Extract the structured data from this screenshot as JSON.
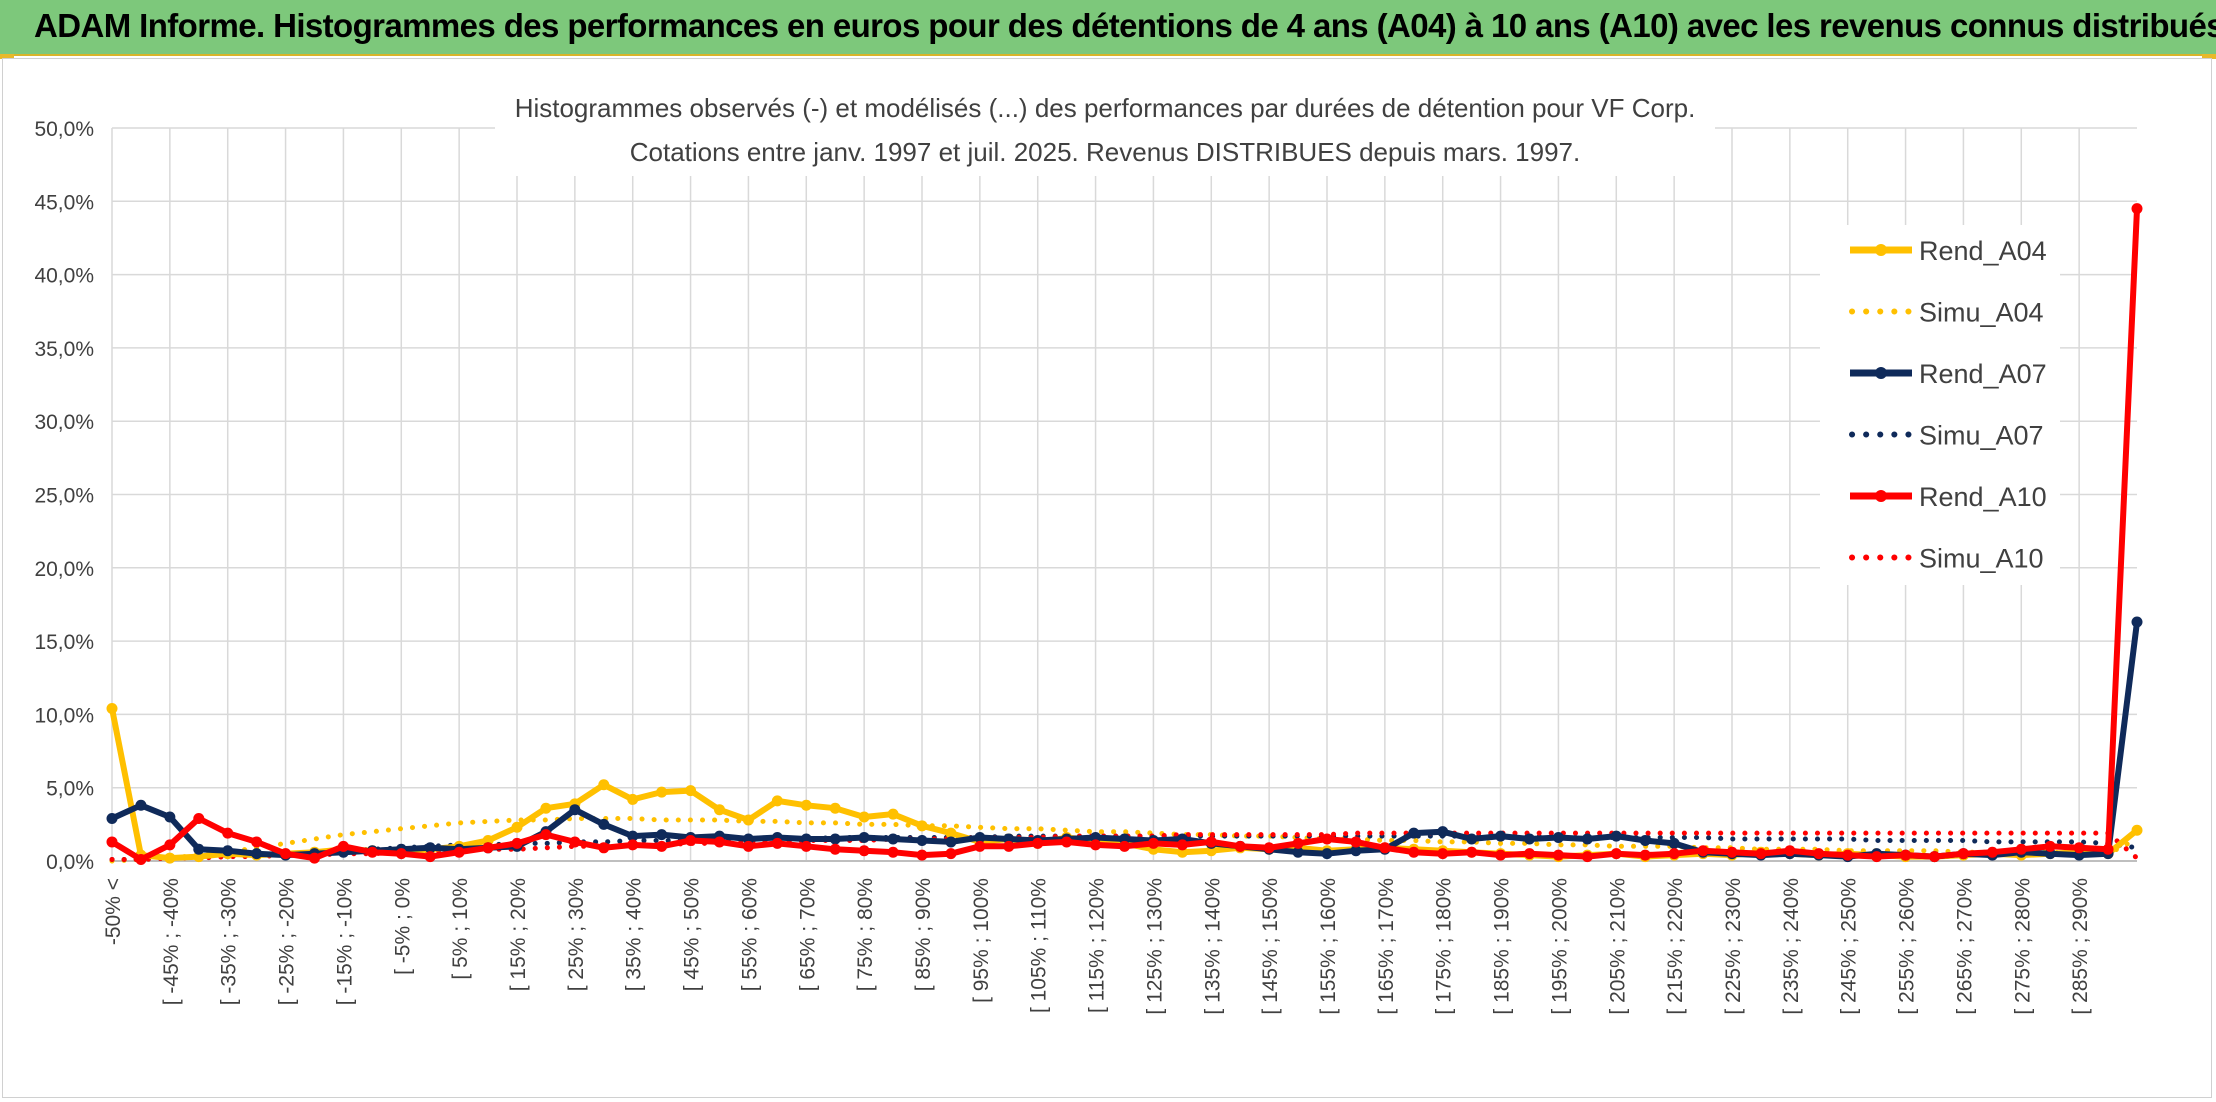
{
  "header": {
    "title": "ADAM Informe. Histogrammes des performances en euros pour des détentions de 4 ans (A04) à 10 ans (A10) avec les revenus connus distribués"
  },
  "chart_data": {
    "type": "line",
    "title_lines": [
      "Histogrammes observés (-) et modélisés (...) des performances par durées de détention pour VF Corp.",
      "Cotations entre janv. 1997 et juil. 2025. Revenus DISTRIBUES depuis mars. 1997."
    ],
    "ylim": [
      0,
      50
    ],
    "yticks": [
      "0,0%",
      "5,0%",
      "10,0%",
      "15,0%",
      "20,0%",
      "25,0%",
      "30,0%",
      "35,0%",
      "40,0%",
      "45,0%",
      "50,0%"
    ],
    "grid": true,
    "legend_position": "right",
    "xtick_labels": [
      "-50% <",
      "[ -45% ; -40%",
      "[ -35% ; -30%",
      "[ -25% ; -20%",
      "[ -15% ; -10%",
      "[ -5% ; 0%",
      "[ 5% ; 10%",
      "[ 15% ; 20%",
      "[ 25% ; 30%",
      "[ 35% ; 40%",
      "[ 45% ; 50%",
      "[ 55% ; 60%",
      "[ 65% ; 70%",
      "[ 75% ; 80%",
      "[ 85% ; 90%",
      "[ 95% ; 100%",
      "[ 105% ; 110%",
      "[ 115% ; 120%",
      "[ 125% ; 130%",
      "[ 135% ; 140%",
      "[ 145% ; 150%",
      "[ 155% ; 160%",
      "[ 165% ; 170%",
      "[ 175% ; 180%",
      "[ 185% ; 190%",
      "[ 195% ; 200%",
      "[ 205% ; 210%",
      "[ 215% ; 220%",
      "[ 225% ; 230%",
      "[ 235% ; 240%",
      "[ 245% ; 250%",
      "[ 255% ; 260%",
      "[ 265% ; 270%",
      "[ 275% ; 280%",
      "[ 285% ; 290%"
    ],
    "categories_count": 71,
    "series": [
      {
        "name": "Rend_A04",
        "style": "solid",
        "color": "#ffc000",
        "values": [
          10.4,
          0.4,
          0.2,
          0.3,
          0.5,
          0.4,
          0.5,
          0.6,
          0.8,
          0.7,
          0.6,
          0.8,
          1.0,
          1.4,
          2.3,
          3.6,
          3.9,
          5.2,
          4.2,
          4.7,
          4.8,
          3.5,
          2.8,
          4.1,
          3.8,
          3.6,
          3.0,
          3.2,
          2.4,
          1.9,
          1.3,
          1.5,
          1.2,
          1.6,
          1.4,
          1.2,
          0.8,
          0.6,
          0.7,
          0.9,
          0.8,
          0.9,
          0.7,
          0.8,
          0.9,
          0.8,
          0.7,
          0.6,
          0.5,
          0.4,
          0.3,
          0.4,
          0.5,
          0.3,
          0.4,
          0.5,
          0.4,
          0.6,
          0.5,
          0.4,
          0.5,
          0.4,
          0.3,
          0.3,
          0.4,
          0.5,
          0.4,
          0.5,
          0.6,
          0.5,
          2.1
        ]
      },
      {
        "name": "Simu_A04",
        "style": "dotted",
        "color": "#ffc000",
        "values": [
          0.0,
          0.1,
          0.2,
          0.4,
          0.6,
          0.9,
          1.2,
          1.5,
          1.8,
          2.0,
          2.2,
          2.4,
          2.6,
          2.7,
          2.8,
          2.8,
          2.9,
          2.9,
          2.9,
          2.8,
          2.8,
          2.8,
          2.7,
          2.7,
          2.6,
          2.6,
          2.5,
          2.5,
          2.4,
          2.4,
          2.3,
          2.2,
          2.2,
          2.1,
          2.0,
          2.0,
          1.9,
          1.8,
          1.8,
          1.7,
          1.7,
          1.6,
          1.5,
          1.5,
          1.4,
          1.4,
          1.3,
          1.3,
          1.2,
          1.2,
          1.1,
          1.1,
          1.0,
          1.0,
          1.0,
          0.9,
          0.9,
          0.8,
          0.8,
          0.8,
          0.7,
          0.7,
          0.7,
          0.7,
          0.6,
          0.6,
          0.6,
          0.6,
          0.5,
          0.5,
          1.5
        ]
      },
      {
        "name": "Rend_A07",
        "style": "solid",
        "color": "#0f2a5a",
        "values": [
          2.9,
          3.8,
          3.0,
          0.8,
          0.7,
          0.5,
          0.4,
          0.5,
          0.6,
          0.7,
          0.8,
          0.9,
          0.8,
          0.9,
          1.0,
          2.0,
          3.5,
          2.5,
          1.7,
          1.8,
          1.6,
          1.7,
          1.5,
          1.6,
          1.5,
          1.5,
          1.6,
          1.5,
          1.4,
          1.3,
          1.6,
          1.5,
          1.4,
          1.5,
          1.6,
          1.5,
          1.4,
          1.5,
          1.2,
          1.0,
          0.8,
          0.6,
          0.5,
          0.7,
          0.8,
          1.9,
          2.0,
          1.5,
          1.7,
          1.5,
          1.6,
          1.5,
          1.7,
          1.4,
          1.2,
          0.6,
          0.5,
          0.4,
          0.5,
          0.4,
          0.3,
          0.5,
          0.4,
          0.3,
          0.5,
          0.4,
          0.6,
          0.5,
          0.4,
          0.5,
          16.3
        ]
      },
      {
        "name": "Simu_A07",
        "style": "dotted",
        "color": "#0f2a5a",
        "values": [
          0.1,
          0.1,
          0.2,
          0.3,
          0.3,
          0.4,
          0.5,
          0.6,
          0.7,
          0.8,
          0.9,
          1.0,
          1.1,
          1.1,
          1.2,
          1.2,
          1.3,
          1.3,
          1.4,
          1.4,
          1.4,
          1.5,
          1.5,
          1.5,
          1.5,
          1.6,
          1.6,
          1.6,
          1.6,
          1.6,
          1.6,
          1.7,
          1.7,
          1.7,
          1.7,
          1.7,
          1.7,
          1.7,
          1.7,
          1.7,
          1.7,
          1.7,
          1.7,
          1.7,
          1.7,
          1.7,
          1.7,
          1.7,
          1.7,
          1.7,
          1.6,
          1.6,
          1.6,
          1.6,
          1.6,
          1.6,
          1.5,
          1.5,
          1.5,
          1.5,
          1.5,
          1.4,
          1.4,
          1.4,
          1.4,
          1.3,
          1.3,
          1.3,
          1.3,
          1.2,
          0.9
        ]
      },
      {
        "name": "Rend_A10",
        "style": "solid",
        "color": "#ff0000",
        "values": [
          1.3,
          0.1,
          1.1,
          2.9,
          1.9,
          1.3,
          0.5,
          0.2,
          1.0,
          0.6,
          0.5,
          0.3,
          0.6,
          0.9,
          1.2,
          1.8,
          1.3,
          0.9,
          1.1,
          1.0,
          1.4,
          1.3,
          1.0,
          1.2,
          1.0,
          0.8,
          0.7,
          0.6,
          0.4,
          0.5,
          1.0,
          1.0,
          1.2,
          1.3,
          1.1,
          1.0,
          1.2,
          1.1,
          1.3,
          1.0,
          0.9,
          1.2,
          1.5,
          1.3,
          0.9,
          0.6,
          0.5,
          0.6,
          0.4,
          0.5,
          0.4,
          0.3,
          0.5,
          0.4,
          0.5,
          0.7,
          0.6,
          0.5,
          0.7,
          0.5,
          0.4,
          0.3,
          0.4,
          0.3,
          0.5,
          0.6,
          0.8,
          1.0,
          0.9,
          0.8,
          44.5
        ]
      },
      {
        "name": "Simu_A10",
        "style": "dotted",
        "color": "#ff0000",
        "values": [
          0.1,
          0.1,
          0.2,
          0.2,
          0.3,
          0.3,
          0.4,
          0.4,
          0.5,
          0.5,
          0.6,
          0.7,
          0.7,
          0.8,
          0.8,
          0.9,
          1.0,
          1.0,
          1.1,
          1.1,
          1.2,
          1.2,
          1.3,
          1.3,
          1.4,
          1.4,
          1.4,
          1.5,
          1.5,
          1.5,
          1.6,
          1.6,
          1.6,
          1.7,
          1.7,
          1.7,
          1.7,
          1.8,
          1.8,
          1.8,
          1.8,
          1.8,
          1.8,
          1.9,
          1.9,
          1.9,
          1.9,
          1.9,
          1.9,
          1.9,
          1.9,
          1.9,
          1.9,
          1.9,
          1.9,
          1.9,
          1.9,
          1.9,
          1.9,
          1.9,
          1.9,
          1.9,
          1.9,
          1.9,
          1.9,
          1.9,
          1.9,
          1.9,
          1.9,
          1.9,
          0.2
        ]
      }
    ]
  }
}
